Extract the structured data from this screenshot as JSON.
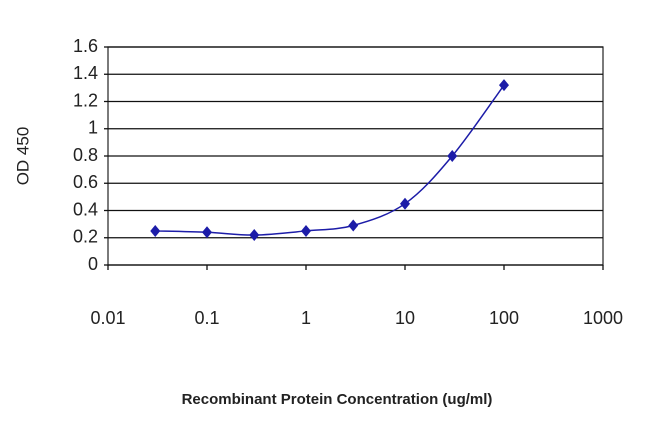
{
  "chart_data": {
    "type": "line",
    "y_label": "OD 450",
    "x_label": "Recombinant Protein Concentration (ug/ml)",
    "x": [
      0.03,
      0.1,
      0.3,
      1,
      3,
      10,
      30,
      100
    ],
    "values": [
      0.25,
      0.24,
      0.22,
      0.25,
      0.29,
      0.45,
      0.8,
      1.32
    ],
    "color": "#1c1ca8",
    "xlim": [
      0.01,
      1000
    ],
    "xticks": [
      0.01,
      0.1,
      1,
      10,
      100,
      1000
    ],
    "x_log": true,
    "ylim": [
      0,
      1.6
    ],
    "yticks": [
      0,
      0.2,
      0.4,
      0.6,
      0.8,
      1,
      1.2,
      1.4,
      1.6
    ],
    "grid": true
  }
}
